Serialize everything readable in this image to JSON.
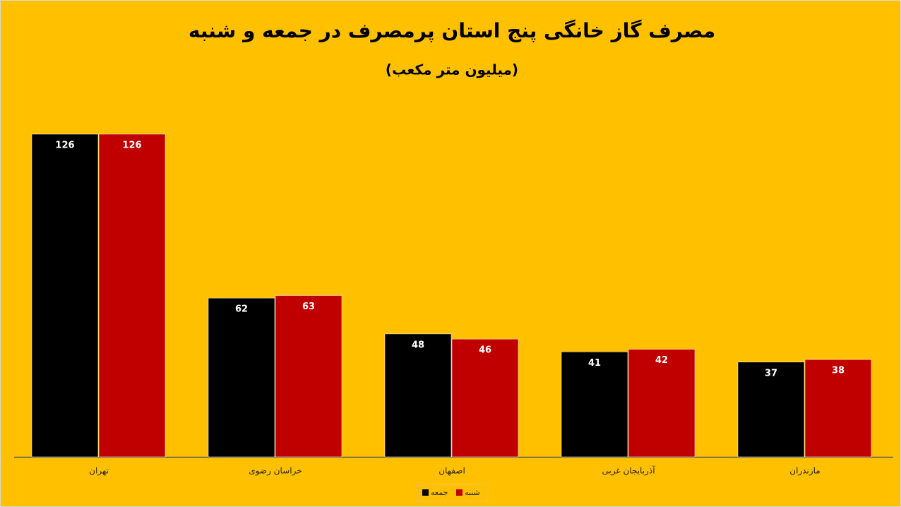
{
  "chart_data": {
    "type": "bar",
    "title": "مصرف گاز خانگی پنج استان پرمصرف در جمعه و شنبه",
    "subtitle": "(میلیون متر مکعب)",
    "categories": [
      "تهران",
      "خراسان رضوی",
      "اصفهان",
      "آذربایجان غربی",
      "مازندران"
    ],
    "series": [
      {
        "name": "جمعه",
        "color": "#000000",
        "values": [
          126,
          62,
          48,
          41,
          37
        ]
      },
      {
        "name": "شنبه",
        "color": "#c00000",
        "values": [
          126,
          63,
          46,
          42,
          38
        ]
      }
    ],
    "legend": "bottom"
  }
}
